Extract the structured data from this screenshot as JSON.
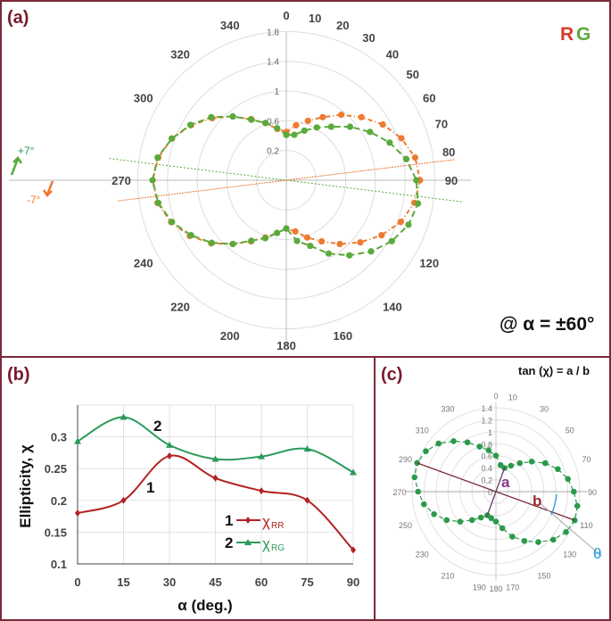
{
  "colors": {
    "border": "#7a2a3a",
    "green": "#5aaa3c",
    "orange": "#ee7a30",
    "red": "#b22222",
    "teal": "#2a9a5a",
    "cyan": "#1a9ad8",
    "panel_label": "#7a1a2a"
  },
  "chart_data": [
    {
      "panel": "(a)",
      "type": "polar-scatter-line",
      "r_range": [
        -0.2,
        1.8
      ],
      "r_ticks": [
        "0.2",
        "0.6",
        "1",
        "1.4",
        "1.8"
      ],
      "angle_labels": [
        "0",
        "10",
        "20",
        "30",
        "40",
        "50",
        "60",
        "70",
        "80",
        "90",
        "120",
        "140",
        "160",
        "180",
        "200",
        "220",
        "240",
        "270",
        "300",
        "320",
        "340"
      ],
      "angles": [
        0,
        10,
        20,
        30,
        40,
        50,
        60,
        70,
        80,
        90,
        100,
        110,
        120,
        130,
        140,
        150,
        160,
        170,
        180,
        190,
        200,
        210,
        220,
        230,
        240,
        250,
        260,
        270,
        280,
        290,
        300,
        310,
        320,
        330,
        340,
        350
      ],
      "series": [
        {
          "color": "green",
          "values": [
            0.41,
            0.42,
            0.51,
            0.62,
            0.74,
            0.92,
            1.1,
            1.28,
            1.44,
            1.55,
            1.6,
            1.55,
            1.44,
            1.29,
            1.12,
            0.94,
            0.74,
            0.63,
            0.45,
            0.52,
            0.63,
            0.74,
            0.92,
            1.11,
            1.28,
            1.44,
            1.55,
            1.6,
            1.56,
            1.44,
            1.29,
            1.12,
            0.92,
            0.74,
            0.62,
            0.51
          ]
        },
        {
          "color": "orange",
          "values": [
            0.45,
            0.55,
            0.65,
            0.78,
            0.95,
            1.12,
            1.3,
            1.45,
            1.56,
            1.6,
            1.55,
            1.44,
            1.28,
            1.1,
            0.92,
            0.75,
            0.62,
            0.5,
            0.45,
            0.52,
            0.62,
            0.75,
            0.92,
            1.12,
            1.3,
            1.45,
            1.56,
            1.6,
            1.55,
            1.44,
            1.28,
            1.1,
            0.92,
            0.75,
            0.62,
            0.5
          ]
        }
      ],
      "annotations": {
        "plus": "+7°",
        "minus": "-7°",
        "rg_r": "R",
        "rg_g": "G",
        "alpha": "@ α = ±60°"
      },
      "tilt_lines_deg": [
        7,
        -7
      ]
    },
    {
      "panel": "(b)",
      "type": "line",
      "x": [
        0,
        15,
        30,
        45,
        60,
        75,
        90
      ],
      "xlabel": "α (deg.)",
      "ylabel": "Ellipticity, χ",
      "ylim": [
        0.1,
        0.35
      ],
      "y_ticks": [
        "0.1",
        "0.15",
        "0.2",
        "0.25",
        "0.3"
      ],
      "x_ticks": [
        "0",
        "15",
        "30",
        "45",
        "60",
        "75",
        "90"
      ],
      "grid": true,
      "series": [
        {
          "name": "χRR",
          "num": "1",
          "color": "red",
          "marker": "diamond",
          "values": [
            0.18,
            0.2,
            0.27,
            0.235,
            0.215,
            0.2,
            0.122
          ]
        },
        {
          "name": "χRG",
          "num": "2",
          "color": "teal",
          "marker": "triangle",
          "values": [
            0.293,
            0.331,
            0.287,
            0.265,
            0.269,
            0.281,
            0.244
          ]
        }
      ],
      "legend": {
        "placement": "bottom-right",
        "l1": "1",
        "l1_sym": "χ",
        "l1_sub": "RR",
        "l2": "2",
        "l2_sym": "χ",
        "l2_sub": "RG"
      },
      "curve_labels": {
        "c1": "1",
        "c2": "2"
      }
    },
    {
      "panel": "(c)",
      "type": "polar-scatter-line",
      "r_range": [
        0,
        1.4
      ],
      "r_ticks": [
        "0",
        "0.2",
        "0.4",
        "0.6",
        "0.8",
        "1",
        "1.2",
        "1.4"
      ],
      "angle_labels": [
        "0",
        "10",
        "30",
        "50",
        "70",
        "90",
        "110",
        "130",
        "150",
        "170",
        "180",
        "190",
        "210",
        "230",
        "250",
        "270",
        "290",
        "310",
        "330"
      ],
      "angles": [
        0,
        10,
        20,
        30,
        40,
        50,
        60,
        70,
        80,
        90,
        100,
        110,
        120,
        130,
        140,
        150,
        160,
        170,
        180,
        190,
        200,
        210,
        220,
        230,
        240,
        250,
        260,
        270,
        280,
        290,
        300,
        310,
        320,
        330,
        340,
        350
      ],
      "series": [
        {
          "color": "green",
          "values": [
            0.6,
            0.45,
            0.42,
            0.5,
            0.62,
            0.78,
            0.95,
            1.1,
            1.22,
            1.3,
            1.38,
            1.4,
            1.35,
            1.25,
            1.1,
            0.95,
            0.8,
            0.62,
            0.5,
            0.45,
            0.42,
            0.5,
            0.62,
            0.78,
            0.95,
            1.1,
            1.22,
            1.3,
            1.38,
            1.4,
            1.35,
            1.25,
            1.1,
            0.95,
            0.8,
            0.7
          ]
        }
      ],
      "annotations": {
        "formula": "tan (χ) = a / b",
        "a": "a",
        "b": "b",
        "theta": "θ"
      }
    }
  ],
  "panel_labels": {
    "a": "(a)",
    "b": "(b)",
    "c": "(c)"
  }
}
